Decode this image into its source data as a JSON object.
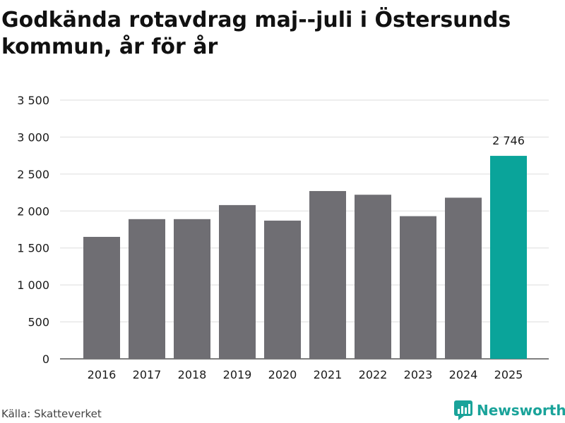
{
  "title": "Godkända rotavdrag maj--juli i Östersunds kommun, år för år",
  "source": "Källa: Skatteverket",
  "brand": {
    "name": "Newsworthy",
    "color": "#1aa39a",
    "icon": "newsworthy-logo-icon"
  },
  "chart_data": {
    "type": "bar",
    "categories": [
      "2016",
      "2017",
      "2018",
      "2019",
      "2020",
      "2021",
      "2022",
      "2023",
      "2024",
      "2025"
    ],
    "values": [
      1650,
      1890,
      1890,
      2080,
      1870,
      2270,
      2220,
      1930,
      2180,
      2746
    ],
    "value_label": "2 746",
    "highlight_index": 9,
    "bar_color": "#6f6e73",
    "highlight_color": "#0aa49a",
    "ylim": [
      0,
      3500
    ],
    "yticks": [
      0,
      500,
      1000,
      1500,
      2000,
      2500,
      3000,
      3500
    ],
    "ytick_labels": [
      "0",
      "500",
      "1 000",
      "1 500",
      "2 000",
      "2 500",
      "3 000",
      "3 500"
    ],
    "grid": true,
    "xlabel": "",
    "ylabel": ""
  }
}
